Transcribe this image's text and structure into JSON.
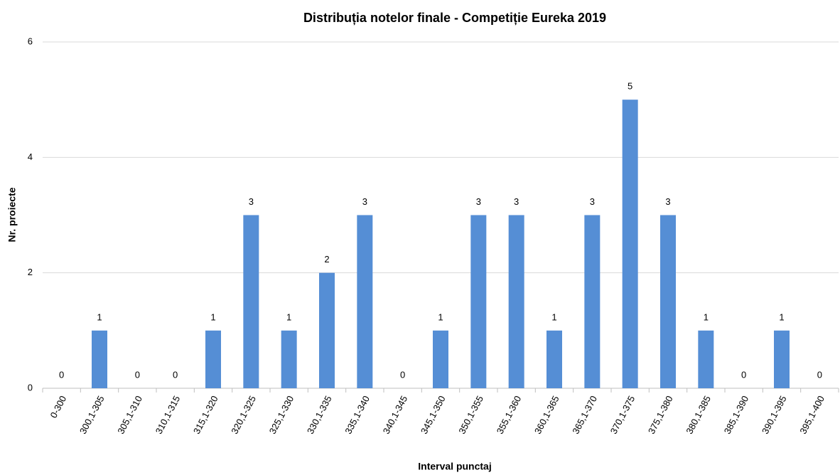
{
  "chart_data": {
    "type": "bar",
    "title": "Distribuția notelor finale - Competiție Eureka 2019",
    "xlabel": "Interval punctaj",
    "ylabel": "Nr. proiecte",
    "categories": [
      "0-300",
      "300,1-305",
      "305,1-310",
      "310,1-315",
      "315,1-320",
      "320,1-325",
      "325,1-330",
      "330,1-335",
      "335,1-340",
      "340,1-345",
      "345,1-350",
      "350,1-355",
      "355,1-360",
      "360,1-365",
      "365,1-370",
      "370,1-375",
      "375,1-380",
      "380,1-385",
      "385,1-390",
      "390,1-395",
      "395,1-400"
    ],
    "values": [
      0,
      1,
      0,
      0,
      1,
      3,
      1,
      2,
      3,
      0,
      1,
      3,
      3,
      1,
      3,
      5,
      3,
      1,
      0,
      1,
      0
    ],
    "color": "#558ed5",
    "ylim": [
      0,
      6
    ],
    "yticks": [
      0,
      2,
      4,
      6
    ],
    "grid": true
  }
}
